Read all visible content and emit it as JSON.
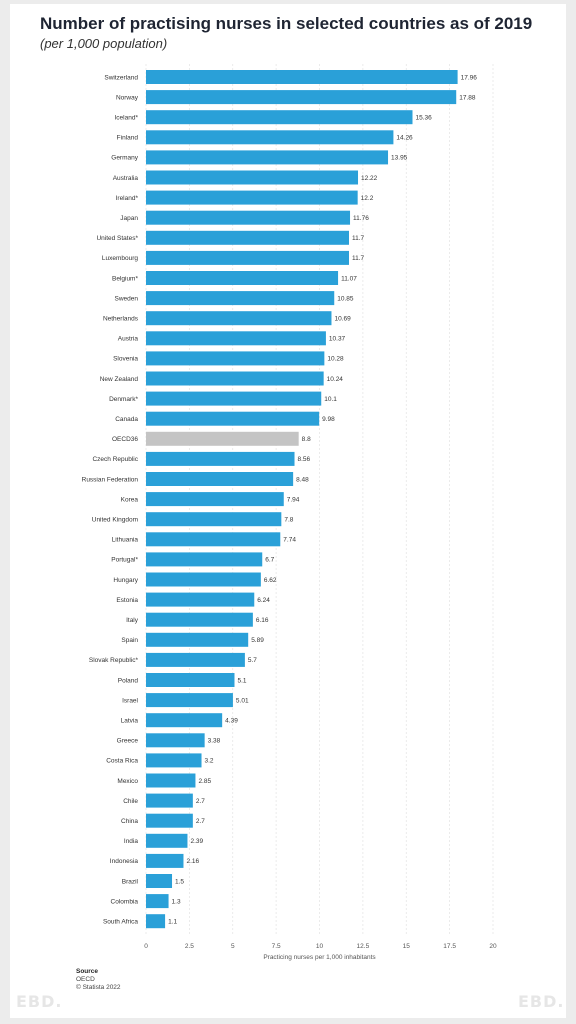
{
  "header": {
    "title": "Number of practising nurses in selected countries as of 2019",
    "subtitle": "(per 1,000 population)"
  },
  "footer": {
    "source_title": "Source",
    "source_name": "OECD",
    "copyright": "© Statista 2022",
    "watermark": "EBD."
  },
  "colors": {
    "bar": "#2aa0d8",
    "highlight": "#c4c4c4",
    "grid": "#e3e3e3"
  },
  "chart_data": {
    "type": "bar",
    "orientation": "horizontal",
    "categories": [
      "Switzerland",
      "Norway",
      "Iceland*",
      "Finland",
      "Germany",
      "Australia",
      "Ireland*",
      "Japan",
      "United States*",
      "Luxembourg",
      "Belgium*",
      "Sweden",
      "Netherlands",
      "Austria",
      "Slovenia",
      "New Zealand",
      "Denmark*",
      "Canada",
      "OECD36",
      "Czech Republic",
      "Russian Federation",
      "Korea",
      "United Kingdom",
      "Lithuania",
      "Portugal*",
      "Hungary",
      "Estonia",
      "Italy",
      "Spain",
      "Slovak Republic*",
      "Poland",
      "Israel",
      "Latvia",
      "Greece",
      "Costa Rica",
      "Mexico",
      "Chile",
      "China",
      "India",
      "Indonesia",
      "Brazil",
      "Colombia",
      "South Africa"
    ],
    "values": [
      17.96,
      17.88,
      15.36,
      14.26,
      13.95,
      12.22,
      12.2,
      11.76,
      11.7,
      11.7,
      11.07,
      10.85,
      10.69,
      10.37,
      10.28,
      10.24,
      10.1,
      9.98,
      8.8,
      8.56,
      8.48,
      7.94,
      7.8,
      7.74,
      6.7,
      6.62,
      6.24,
      6.16,
      5.89,
      5.7,
      5.1,
      5.01,
      4.39,
      3.38,
      3.2,
      2.85,
      2.7,
      2.7,
      2.39,
      2.16,
      1.5,
      1.3,
      1.1
    ],
    "value_labels": [
      "17.96",
      "17.88",
      "15.36",
      "14.26",
      "13.95",
      "12.22",
      "12.2",
      "11.76",
      "11.7",
      "11.7",
      "11.07",
      "10.85",
      "10.69",
      "10.37",
      "10.28",
      "10.24",
      "10.1",
      "9.98",
      "8.8",
      "8.56",
      "8.48",
      "7.94",
      "7.8",
      "7.74",
      "6.7",
      "6.62",
      "6.24",
      "6.16",
      "5.89",
      "5.7",
      "5.1",
      "5.01",
      "4.39",
      "3.38",
      "3.2",
      "2.85",
      "2.7",
      "2.7",
      "2.39",
      "2.16",
      "1.5",
      "1.3",
      "1.1"
    ],
    "highlight_category": "OECD36",
    "xlabel": "Practicing nurses per 1,000 inhabitants",
    "xlim": [
      0,
      20
    ],
    "xticks": [
      0,
      2.5,
      5,
      7.5,
      10,
      12.5,
      15,
      17.5,
      20
    ],
    "xtick_labels": [
      "0",
      "2.5",
      "5",
      "7.5",
      "10",
      "12.5",
      "15",
      "17.5",
      "20"
    ],
    "grid": true
  }
}
